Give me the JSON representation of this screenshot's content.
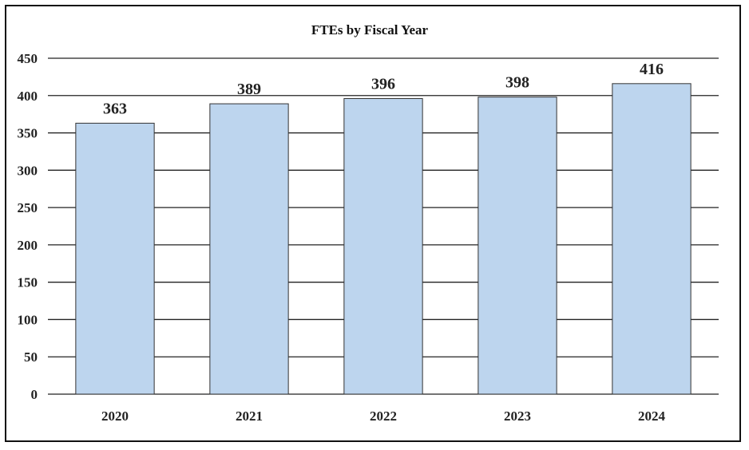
{
  "chart_data": {
    "type": "bar",
    "title": "FTEs by Fiscal Year",
    "xlabel": "",
    "ylabel": "",
    "categories": [
      "2020",
      "2021",
      "2022",
      "2023",
      "2024"
    ],
    "values": [
      363,
      389,
      396,
      398,
      416
    ],
    "data_labels": [
      "363",
      "389",
      "396",
      "398",
      "416"
    ],
    "ylim": [
      0,
      450
    ],
    "yticks": [
      0,
      50,
      100,
      150,
      200,
      250,
      300,
      350,
      400,
      450
    ],
    "grid": true,
    "legend": "none",
    "colors": {
      "bar_fill": "#bdd5ee",
      "bar_stroke": "#333333",
      "grid": "#222222",
      "text": "#222222"
    }
  }
}
